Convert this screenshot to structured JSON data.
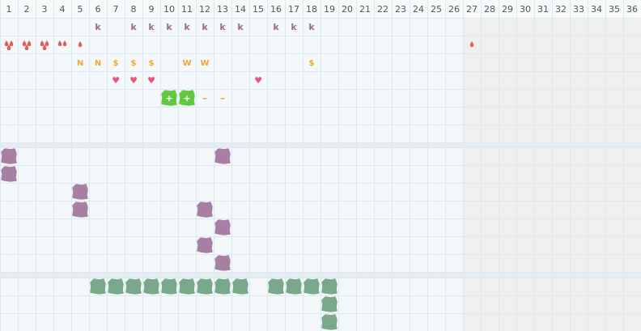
{
  "columns": [
    "1",
    "2",
    "3",
    "4",
    "5",
    "6",
    "7",
    "8",
    "9",
    "10",
    "11",
    "12",
    "13",
    "14",
    "15",
    "16",
    "17",
    "18",
    "19",
    "20",
    "21",
    "22",
    "23",
    "24",
    "25",
    "26",
    "27",
    "28",
    "29",
    "30",
    "31",
    "32",
    "33",
    "34",
    "35",
    "36"
  ],
  "active_columns": 26,
  "colors": {
    "grid_line": "#dbe9f0",
    "band_bg": "#f4f8fa",
    "inactive_bg": "#efefef",
    "separator": "#e6ecef",
    "header_bg": "#f7fafb",
    "k": "#9a6d8b",
    "drop": "#e25b5b",
    "letter": "#f0a830",
    "heart": "#e5577a",
    "plus_blob": "#62c842",
    "dash": "#f0a040",
    "purple_blob": "#a77fa5",
    "green_blob": "#7aa88a"
  },
  "band1": {
    "rows": [
      {
        "k": [
          "",
          "",
          "",
          "",
          "",
          "k",
          "",
          "k",
          "k",
          "k",
          "k",
          "k",
          "k",
          "k",
          "",
          "k",
          "k",
          "k"
        ]
      },
      {
        "drops": [
          2,
          2,
          2,
          2,
          1,
          0,
          0,
          0,
          0,
          0,
          0,
          0,
          0,
          0,
          0,
          0,
          0,
          0,
          0,
          0,
          0,
          0,
          0,
          0,
          0,
          0,
          1
        ]
      },
      {
        "letters": [
          "",
          "",
          "",
          "",
          "N",
          "N",
          "$",
          "$",
          "$",
          "",
          "W",
          "W",
          "",
          "",
          "",
          "",
          "",
          "$"
        ]
      },
      {
        "hearts": [
          "",
          "",
          "",
          "",
          "",
          "",
          "♥",
          "♥",
          "♥",
          "",
          "",
          "",
          "",
          "",
          "♥"
        ]
      },
      {
        "marks": [
          "",
          "",
          "",
          "",
          "",
          "",
          "",
          "",
          "",
          "+",
          "+",
          "–",
          "–"
        ]
      }
    ]
  },
  "band2": {
    "purple_cells": [
      [
        1,
        1
      ],
      [
        13,
        1
      ],
      [
        1,
        2
      ],
      [
        5,
        3
      ],
      [
        5,
        4
      ],
      [
        12,
        4
      ],
      [
        13,
        5
      ],
      [
        12,
        6
      ],
      [
        13,
        7
      ]
    ]
  },
  "band3": {
    "green_cells": [
      [
        6,
        1
      ],
      [
        7,
        1
      ],
      [
        8,
        1
      ],
      [
        9,
        1
      ],
      [
        10,
        1
      ],
      [
        11,
        1
      ],
      [
        12,
        1
      ],
      [
        13,
        1
      ],
      [
        14,
        1
      ],
      [
        16,
        1
      ],
      [
        17,
        1
      ],
      [
        18,
        1
      ],
      [
        19,
        1
      ],
      [
        19,
        2
      ],
      [
        19,
        3
      ]
    ]
  }
}
